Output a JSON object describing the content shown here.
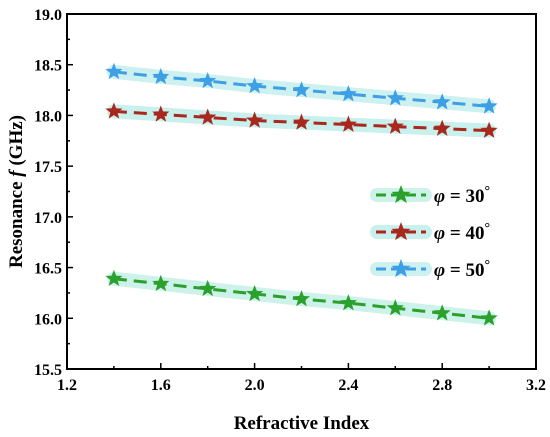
{
  "chart_data": {
    "type": "line",
    "xlabel": "Refractive Index",
    "ylabel_prefix": "Resonance ",
    "ylabel_var": "f",
    "ylabel_unit": " (GHz)",
    "xlim": [
      1.2,
      3.2
    ],
    "ylim": [
      15.5,
      19.0
    ],
    "x_ticks": [
      "1.2",
      "1.6",
      "2.0",
      "2.4",
      "2.8",
      "3.2"
    ],
    "y_ticks": [
      "15.5",
      "16.0",
      "16.5",
      "17.0",
      "17.5",
      "18.0",
      "18.5",
      "19.0"
    ],
    "x": [
      1.4,
      1.6,
      1.8,
      2.0,
      2.2,
      2.4,
      2.6,
      2.8,
      3.0
    ],
    "legend_position": "middle-right",
    "series": [
      {
        "name_var": "φ",
        "name_value": " = 30",
        "name_unit": "°",
        "color": "#2ca02c",
        "glow": "#ccf2e9",
        "values": [
          16.39,
          16.34,
          16.29,
          16.24,
          16.19,
          16.15,
          16.1,
          16.05,
          16.0
        ]
      },
      {
        "name_var": "φ",
        "name_value": " = 40",
        "name_unit": "°",
        "color": "#a8281e",
        "glow": "#c8f0ec",
        "values": [
          18.04,
          18.01,
          17.98,
          17.95,
          17.93,
          17.91,
          17.89,
          17.87,
          17.85
        ]
      },
      {
        "name_var": "φ",
        "name_value": " = 50",
        "name_unit": "°",
        "color": "#3e9fe4",
        "glow": "#cdf0f0",
        "values": [
          18.43,
          18.38,
          18.34,
          18.29,
          18.25,
          18.21,
          18.17,
          18.13,
          18.09
        ]
      }
    ]
  }
}
